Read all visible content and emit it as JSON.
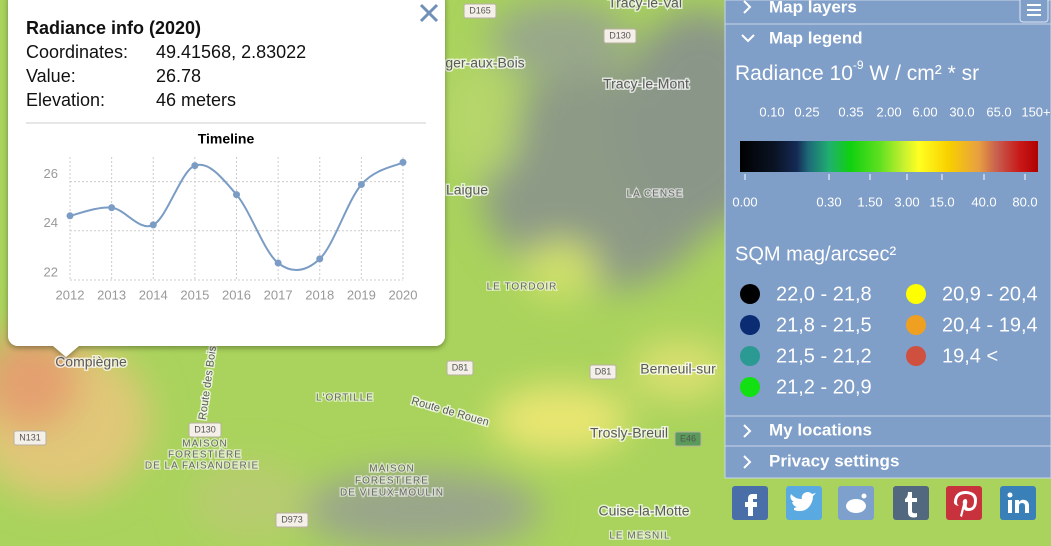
{
  "popup": {
    "title": "Radiance info (2020)",
    "rows": [
      [
        "Coordinates:",
        "49.41568, 2.83022"
      ],
      [
        "Value:",
        "26.78"
      ],
      [
        "Elevation:",
        "46 meters"
      ]
    ]
  },
  "chart_data": {
    "type": "line",
    "title": "Timeline",
    "x": [
      2012,
      2013,
      2014,
      2015,
      2016,
      2017,
      2018,
      2019,
      2020
    ],
    "values": [
      24.61,
      24.94,
      24.24,
      26.65,
      25.47,
      22.69,
      22.86,
      25.88,
      26.78
    ],
    "color": "#7b9cc4",
    "xlim": [
      2012,
      2020
    ],
    "xticks": [
      2012,
      2013,
      2014,
      2015,
      2016,
      2017,
      2018,
      2019,
      2020
    ],
    "ylim": [
      22,
      27
    ],
    "yticks": [
      22,
      24,
      26
    ],
    "grid": true
  },
  "panel": {
    "sections": {
      "map_layers": "Map layers",
      "map_legend": "Map legend",
      "my_locations": "My locations",
      "privacy": "Privacy settings"
    },
    "radiance": {
      "title": [
        "Radiance 10",
        "-9",
        " W / cm² * sr"
      ],
      "top_labels": [
        "0.10",
        "0.25",
        "0.35",
        "2.00",
        "6.00",
        "30.0",
        "65.0",
        "150+"
      ],
      "bottom_labels": [
        "0.00",
        "0.30",
        "1.50",
        "3.00",
        "15.0",
        "40.0",
        "80.0"
      ]
    },
    "sqm": {
      "title": "SQM mag/arcsec²",
      "items": [
        {
          "color": "#000000",
          "label": "22,0 - 21,8"
        },
        {
          "color": "#0b2b73",
          "label": "21,8 - 21,5"
        },
        {
          "color": "#2a9a92",
          "label": "21,5 - 21,2"
        },
        {
          "color": "#12e012",
          "label": "21,2 - 20,9"
        },
        {
          "color": "#ffff00",
          "label": "20,9 - 20,4"
        },
        {
          "color": "#f0a020",
          "label": "20,4 - 19,4"
        },
        {
          "color": "#d05040",
          "label": "19,4 <"
        }
      ]
    }
  },
  "map": {
    "labels": [
      "D165",
      "Tracy-le-Val",
      "D130",
      "ger-aux-Bois",
      "Tracy-le-Mont",
      "LA CENSE",
      "Laigue",
      "LE TORDOIR",
      "Compiègne",
      "D81",
      "Berneuil-sur",
      "D81",
      "L'ORTILLE",
      "Route de Rouen",
      "Trosly-Breuil",
      "E46",
      "D130",
      "MAISON",
      "FORESTIÈRE",
      "DE LA FAISANDERIE",
      "MAISON",
      "FORESTIERE",
      "DE VIEUX-MOULIN",
      "D973",
      "Cuise-la-Motte",
      "LE MESNIL",
      "N131",
      "Route des Bois"
    ]
  }
}
